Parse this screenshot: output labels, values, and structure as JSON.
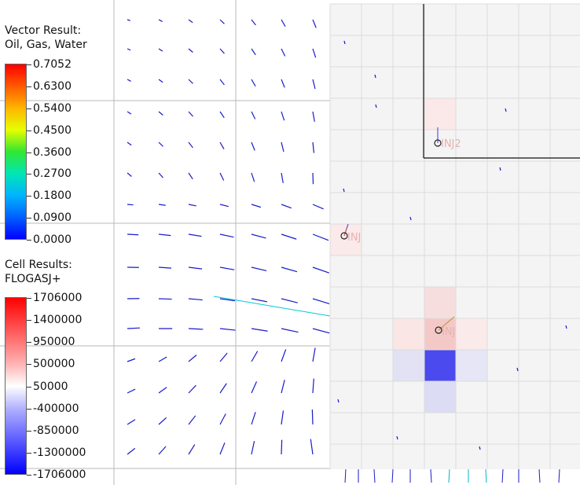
{
  "vector_legend": {
    "title_line1": "Vector Result:",
    "title_line2": "Oil, Gas, Water",
    "labels": [
      "0.7052",
      "0.6300",
      "0.5400",
      "0.4500",
      "0.3600",
      "0.2700",
      "0.1800",
      "0.0900",
      "0.0000"
    ]
  },
  "cell_legend": {
    "title_line1": "Cell Results:",
    "title_line2": "FLOGASJ+",
    "labels": [
      "1706000",
      "1400000",
      "950000",
      "500000",
      "50000",
      "-400000",
      "-850000",
      "-1300000",
      "-1706000"
    ]
  },
  "wells": {
    "inj2": "INJ2",
    "inj1": "INJ",
    "inj3": "INJ"
  },
  "colors": {
    "vector": "#1a1acc",
    "grid": "#b8b8b8",
    "panel": "#f4f4f4",
    "cell_red": "#f7d4d4",
    "cell_blue": "#4a4aee",
    "cell_lightblue": "#dcdcf4"
  }
}
